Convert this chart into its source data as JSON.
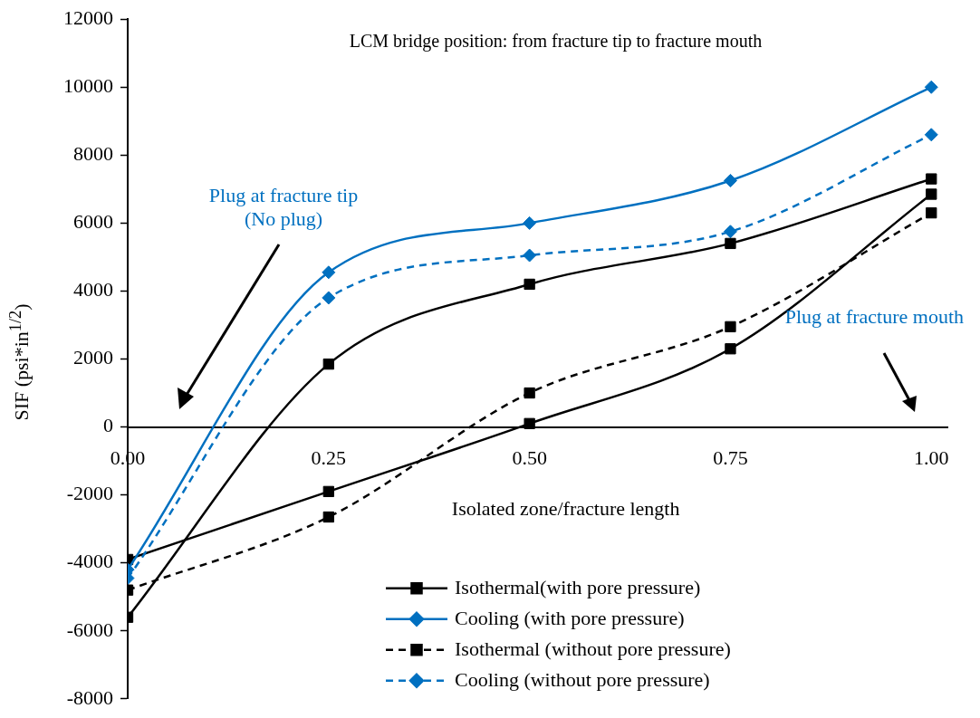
{
  "chart_data": {
    "type": "line",
    "xlabel": "Isolated zone/fracture length",
    "ylabel": "SIF (psi*in$^{1/2}$)",
    "annotations": [
      "LCM bridge position: from fracture tip to fracture mouth",
      "Plug at fracture tip\n(No plug)",
      "Plug at fracture mouth"
    ],
    "x": [
      0,
      0.25,
      0.5,
      0.75,
      1
    ],
    "series": [
      {
        "name": "Isothermal(with pore pressure)",
        "color": "#000000",
        "values": [
          -5600,
          1850,
          4200,
          5400,
          7300
        ],
        "marker": "square",
        "line_style": "solid"
      },
      {
        "name": "Cooling (with pore pressure)",
        "color": "#0070c0",
        "values": [
          -4200,
          4550,
          6000,
          7250,
          10000
        ],
        "marker": "diamond",
        "line_style": "solid"
      },
      {
        "name": "Isothermal (without pore pressure)",
        "color": "#000000",
        "values": [
          -4800,
          -2650,
          1000,
          2950,
          6300
        ],
        "marker": "square",
        "line_style": "dashed"
      },
      {
        "name": "Cooling (without pore pressure)",
        "color": "#0070c0",
        "values": [
          -4450,
          3800,
          5050,
          5750,
          8600
        ],
        "marker": "diamond",
        "line_style": "dashed"
      },
      {
        "color": "#000000",
        "values": [
          -3900,
          -1900,
          100,
          2300,
          6850
        ],
        "marker": "square",
        "line_style": "solid"
      }
    ],
    "xlim": [
      0,
      1.02
    ],
    "xticks": [
      {
        "value": 0,
        "label": "0.00"
      },
      {
        "value": 0.25,
        "label": "0.25"
      },
      {
        "value": 0.5,
        "label": "0.50"
      },
      {
        "value": 0.75,
        "label": "0.75"
      },
      {
        "value": 1,
        "label": "1.00"
      }
    ],
    "ylim": [
      -8000,
      12000
    ],
    "yticks": [
      -8000,
      -6000,
      -4000,
      -2000,
      0,
      2000,
      4000,
      6000,
      8000,
      10000,
      12000
    ],
    "grid": false,
    "legend": "bottom right"
  }
}
